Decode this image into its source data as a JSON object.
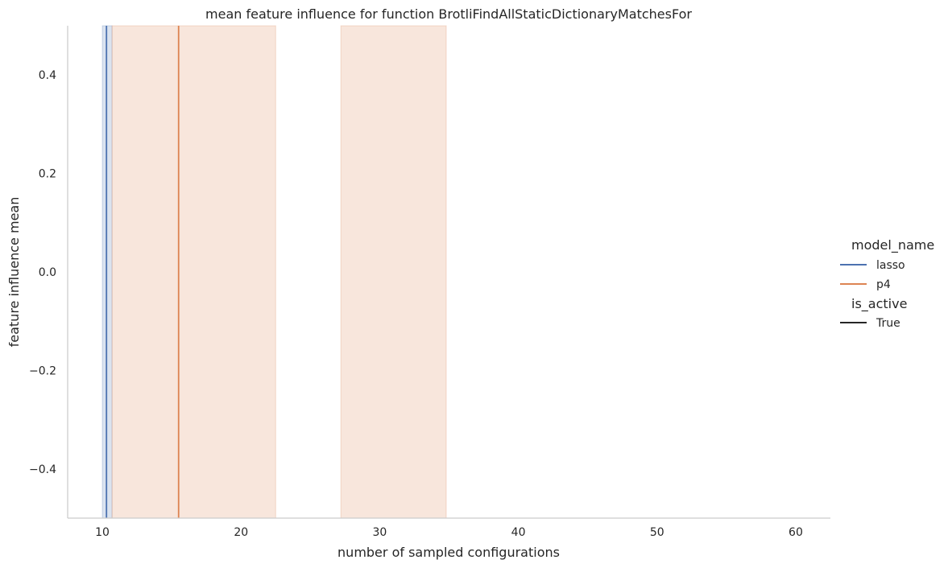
{
  "chart_data": {
    "type": "line",
    "title": "mean feature influence for function BrotliFindAllStaticDictionaryMatchesFor",
    "xlabel": "number of sampled configurations",
    "ylabel": "feature influence mean",
    "xlim": [
      7.5,
      62.5
    ],
    "ylim": [
      -0.5,
      0.5
    ],
    "xticks": [
      10,
      20,
      30,
      40,
      50,
      60
    ],
    "yticks": [
      -0.4,
      -0.2,
      0.0,
      0.2,
      0.4
    ],
    "xtick_labels": [
      "10",
      "20",
      "30",
      "40",
      "50",
      "60"
    ],
    "ytick_labels": [
      "−0.4",
      "−0.2",
      "0.0",
      "0.2",
      "0.4"
    ],
    "grid": false,
    "legend_position": "right",
    "series": [
      {
        "name": "lasso",
        "color": "#4c72b0",
        "vlines": [
          10.3
        ],
        "ci_bands": [
          [
            10.0,
            10.7
          ]
        ]
      },
      {
        "name": "p4",
        "color": "#dd8452",
        "vlines": [
          15.5
        ],
        "ci_bands": [
          [
            10.7,
            22.5
          ],
          [
            27.2,
            34.8
          ]
        ]
      }
    ],
    "legend": {
      "hue_title": "model_name",
      "hue_entries": [
        {
          "label": "lasso",
          "color": "#4c72b0"
        },
        {
          "label": "p4",
          "color": "#dd8452"
        }
      ],
      "style_title": "is_active",
      "style_entries": [
        {
          "label": "True",
          "color": "#262626"
        }
      ]
    }
  }
}
